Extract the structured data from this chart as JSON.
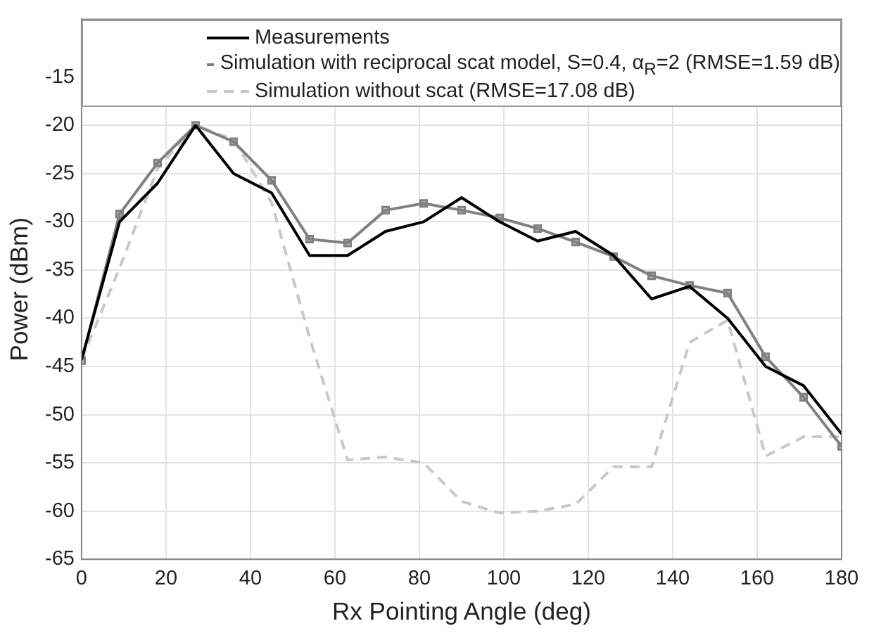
{
  "chart_data": {
    "type": "line",
    "xlabel": "Rx Pointing Angle (deg)",
    "ylabel": "Power (dBm)",
    "x": [
      0,
      9,
      18,
      27,
      36,
      45,
      54,
      63,
      72,
      81,
      90,
      99,
      108,
      117,
      126,
      135,
      144,
      153,
      162,
      171,
      180
    ],
    "xlim": [
      0,
      180
    ],
    "xticks": [
      0,
      20,
      40,
      60,
      80,
      100,
      120,
      140,
      160,
      180
    ],
    "ylim": [
      -65,
      -9
    ],
    "yticks": [
      -65,
      -60,
      -55,
      -50,
      -45,
      -40,
      -35,
      -30,
      -25,
      -20,
      -15
    ],
    "grid": true,
    "legend": "top",
    "line_style": "solid",
    "series": [
      {
        "name": "Measurements",
        "color": "#000000",
        "marker": "none",
        "values": [
          -44.3,
          -30,
          -26,
          -20,
          -25,
          -27,
          -33.5,
          -33.5,
          -31,
          -30,
          -27.5,
          -30,
          -32,
          -31,
          -33.5,
          -38,
          -36.7,
          -40,
          -45,
          -47,
          -52
        ]
      },
      {
        "name": "Simulation with reciprocal scat model, S=0.4, α$_{R}$=2 (RMSE=1.59 dB)",
        "color": "#808080",
        "marker": "square",
        "values": [
          -44.4,
          -29.2,
          -23.9,
          -20,
          -21.7,
          -25.7,
          -31.8,
          -32.2,
          -28.8,
          -28.1,
          -28.8,
          -29.6,
          -30.7,
          -32.1,
          -33.6,
          -35.6,
          -36.6,
          -37.4,
          -44,
          -48.2,
          -53.3
        ]
      },
      {
        "name": "Simulation without scat (RMSE=17.08 dB)",
        "color": "#c8c8c8",
        "marker": "none",
        "line_style": "dashed",
        "values": [
          -44.3,
          -34.8,
          -24.5,
          -20,
          -21.5,
          -28,
          -42,
          -54.7,
          -54.4,
          -55,
          -59,
          -60.2,
          -60,
          -59.3,
          -55.4,
          -55.4,
          -42.5,
          -40.2,
          -54.3,
          -52.3,
          -52.3
        ]
      }
    ]
  }
}
